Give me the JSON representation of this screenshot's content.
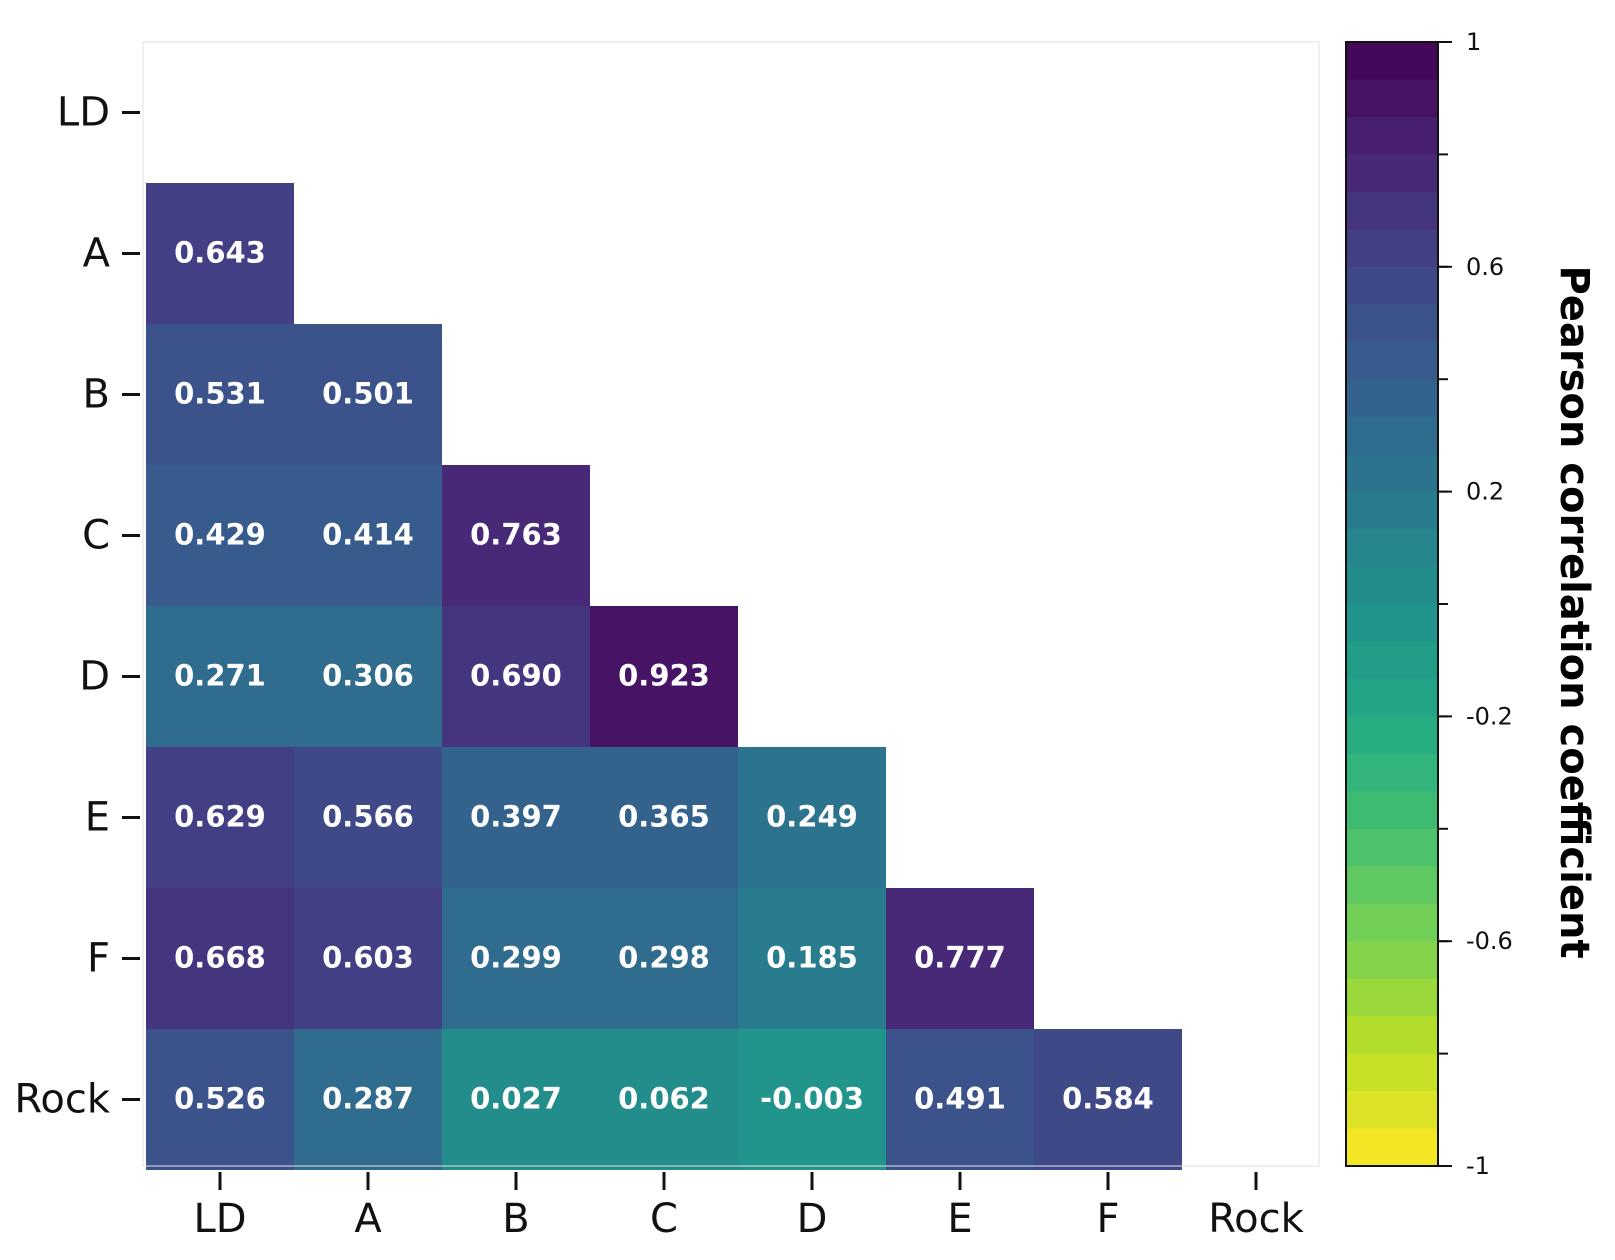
{
  "chart_data": {
    "type": "heatmap",
    "title": "",
    "xlabel": "",
    "ylabel": "",
    "x_categories": [
      "LD",
      "A",
      "B",
      "C",
      "D",
      "E",
      "F",
      "Rock"
    ],
    "y_categories": [
      "LD",
      "A",
      "B",
      "C",
      "D",
      "E",
      "F",
      "Rock"
    ],
    "values": [
      [
        null,
        null,
        null,
        null,
        null,
        null,
        null,
        null
      ],
      [
        0.643,
        null,
        null,
        null,
        null,
        null,
        null,
        null
      ],
      [
        0.531,
        0.501,
        null,
        null,
        null,
        null,
        null,
        null
      ],
      [
        0.429,
        0.414,
        0.763,
        null,
        null,
        null,
        null,
        null
      ],
      [
        0.271,
        0.306,
        0.69,
        0.923,
        null,
        null,
        null,
        null
      ],
      [
        0.629,
        0.566,
        0.397,
        0.365,
        0.249,
        null,
        null,
        null
      ],
      [
        0.668,
        0.603,
        0.299,
        0.298,
        0.185,
        0.777,
        null,
        null
      ],
      [
        0.526,
        0.287,
        0.027,
        0.062,
        -0.003,
        0.491,
        0.584,
        null
      ]
    ],
    "value_labels": [
      [],
      [
        "0.643"
      ],
      [
        "0.531",
        "0.501"
      ],
      [
        "0.429",
        "0.414",
        "0.763"
      ],
      [
        "0.271",
        "0.306",
        "0.690",
        "0.923"
      ],
      [
        "0.629",
        "0.566",
        "0.397",
        "0.365",
        "0.249"
      ],
      [
        "0.668",
        "0.603",
        "0.299",
        "0.298",
        "0.185",
        "0.777"
      ],
      [
        "0.526",
        "0.287",
        "0.027",
        "0.062",
        "-0.003",
        "0.491",
        "0.584"
      ]
    ],
    "colorbar": {
      "label": "Pearson correlation coefficient",
      "range": [
        -1,
        1
      ],
      "levels": 30,
      "ticks": [
        1,
        0.6,
        0.2,
        -0.2,
        -0.6,
        -1
      ],
      "tick_labels": [
        "1",
        "0.6",
        "0.2",
        "-0.2",
        "-0.6",
        "-1"
      ],
      "colormap": "viridis_r"
    },
    "grid": false,
    "legend": "right"
  }
}
